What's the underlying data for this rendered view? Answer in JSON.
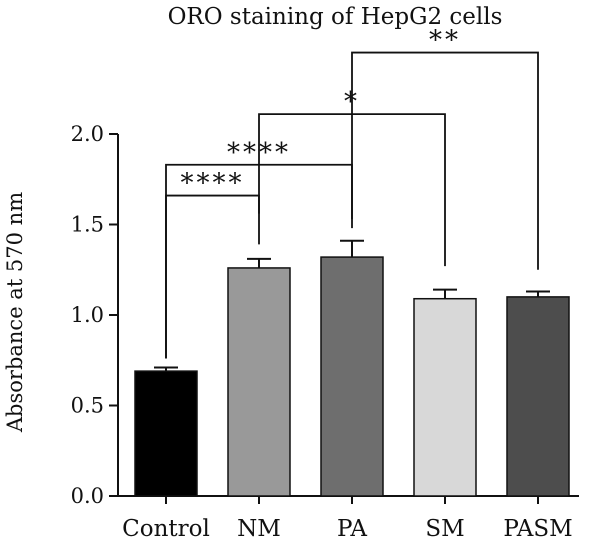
{
  "chart_data": {
    "type": "bar",
    "title": "ORO staining of HepG2 cells",
    "xlabel": "",
    "ylabel": "Absorbance at 570 nm",
    "ylim": [
      0,
      2.0
    ],
    "yticks": [
      "0.0",
      "0.5",
      "1.0",
      "1.5",
      "2.0"
    ],
    "categories": [
      "Control",
      "NM",
      "PA",
      "SM",
      "PASM"
    ],
    "values": [
      0.69,
      1.26,
      1.32,
      1.09,
      1.1
    ],
    "errors": [
      0.02,
      0.05,
      0.09,
      0.05,
      0.03
    ],
    "colors": [
      "#000000",
      "#999999",
      "#6e6e6e",
      "#d8d8d8",
      "#4d4d4d"
    ],
    "grid": false,
    "significance": [
      {
        "from": "Control",
        "to": "NM",
        "label": "****"
      },
      {
        "from": "Control",
        "to": "PA",
        "label": "****"
      },
      {
        "from": "NM",
        "to": "SM",
        "label": "*"
      },
      {
        "from": "PA",
        "to": "PASM",
        "label": "**"
      }
    ]
  }
}
